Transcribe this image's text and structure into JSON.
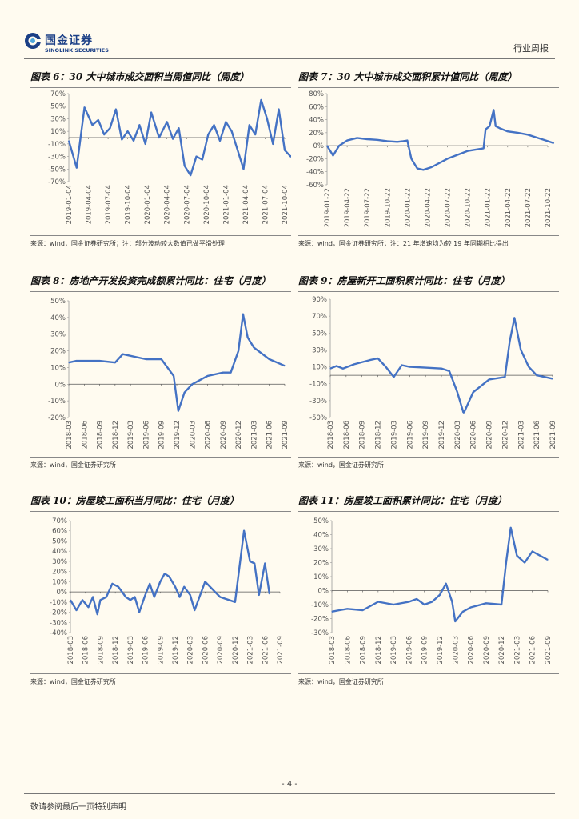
{
  "header": {
    "logo_cn": "国金证券",
    "logo_en": "SINOLINK SECURITIES",
    "report_type": "行业周报"
  },
  "colors": {
    "line": "#4472c4",
    "brand": "#1b3f86",
    "background": "#fffbf0"
  },
  "charts": [
    {
      "id": "fig6",
      "title": "图表 6：30 大中城市成交面积当周值同比（周度）",
      "source": "来源：wind，国金证券研究所；注：部分波动较大数值已做平滑处理",
      "chart_data": {
        "type": "line",
        "yticks": [
          "70%",
          "50%",
          "30%",
          "10%",
          "-10%",
          "-30%",
          "-50%",
          "-70%"
        ],
        "ylim": [
          -70,
          70
        ],
        "xticks": [
          "2019-01-04",
          "2019-04-04",
          "2019-07-04",
          "2019-10-04",
          "2020-01-04",
          "2020-04-04",
          "2020-07-04",
          "2020-10-04",
          "2021-01-04",
          "2021-04-04",
          "2021-07-04",
          "2021-10-04"
        ],
        "x": [
          0,
          0.4,
          0.8,
          1.2,
          1.5,
          1.8,
          2.1,
          2.4,
          2.7,
          3.0,
          3.3,
          3.6,
          3.9,
          4.2,
          4.6,
          5.0,
          5.3,
          5.6,
          5.9,
          6.2,
          6.5,
          6.8,
          7.1,
          7.4,
          7.7,
          8.0,
          8.3,
          8.6,
          8.9,
          9.2,
          9.5,
          9.8,
          10.1,
          10.4,
          10.7,
          11.0,
          11.3,
          11.6,
          11.9
        ],
        "values": [
          -5,
          -48,
          48,
          20,
          28,
          5,
          15,
          45,
          -3,
          10,
          -5,
          20,
          -10,
          40,
          0,
          25,
          -2,
          15,
          -45,
          -60,
          -30,
          -35,
          5,
          20,
          -5,
          25,
          10,
          -20,
          -50,
          20,
          5,
          60,
          30,
          -10,
          45,
          -20,
          -30,
          -25,
          -10
        ]
      }
    },
    {
      "id": "fig7",
      "title": "图表 7：30 大中城市成交面积累计值同比（周度）",
      "source": "来源：wind，国金证券研究所；注：21 年增速均为较 19 年同期相比得出",
      "chart_data": {
        "type": "line",
        "yticks": [
          "80%",
          "60%",
          "40%",
          "20%",
          "0%",
          "-20%",
          "-40%",
          "-60%"
        ],
        "ylim": [
          -60,
          80
        ],
        "xticks": [
          "2019-01-22",
          "2019-04-22",
          "2019-07-22",
          "2019-10-22",
          "2020-01-22",
          "2020-04-22",
          "2020-07-22",
          "2020-10-22",
          "2021-01-22",
          "2021-04-22",
          "2021-07-22",
          "2021-10-22"
        ],
        "x": [
          0,
          0.3,
          0.6,
          1.0,
          1.5,
          2.0,
          2.5,
          3.0,
          3.5,
          3.8,
          4.0,
          4.2,
          4.5,
          4.8,
          5.2,
          6.0,
          7.0,
          7.8,
          7.9,
          8.1,
          8.3,
          8.4,
          8.6,
          9.0,
          9.5,
          10.0,
          10.5,
          11.0,
          11.3
        ],
        "values": [
          0,
          -15,
          0,
          8,
          12,
          10,
          9,
          7,
          6,
          7,
          8,
          -20,
          -35,
          -37,
          -33,
          -20,
          -8,
          -4,
          25,
          30,
          55,
          30,
          27,
          22,
          20,
          17,
          12,
          7,
          4
        ]
      }
    },
    {
      "id": "fig8",
      "title": "图表 8：房地产开发投资完成额累计同比：住宅（月度）",
      "source": "来源：wind，国金证券研究所",
      "chart_data": {
        "type": "line",
        "yticks": [
          "50%",
          "40%",
          "30%",
          "20%",
          "10%",
          "0%",
          "-10%",
          "-20%"
        ],
        "ylim": [
          -20,
          50
        ],
        "xticks": [
          "2018-03",
          "2018-06",
          "2018-09",
          "2018-12",
          "2019-03",
          "2019-06",
          "2019-09",
          "2019-12",
          "2020-03",
          "2020-06",
          "2020-09",
          "2020-12",
          "2021-03",
          "2021-06",
          "2021-09"
        ],
        "x": [
          0,
          0.5,
          1,
          2,
          3,
          3.5,
          4,
          5,
          6,
          6.8,
          7.1,
          7.5,
          8,
          9,
          10,
          10.5,
          11,
          11.3,
          11.6,
          12,
          13,
          14
        ],
        "values": [
          13,
          14,
          14,
          14,
          13,
          18,
          17,
          15,
          15,
          5,
          -16,
          -5,
          0,
          5,
          7,
          7,
          20,
          42,
          28,
          22,
          15,
          11
        ]
      }
    },
    {
      "id": "fig9",
      "title": "图表 9：房屋新开工面积累计同比：住宅（月度）",
      "source": "来源：wind，国金证券研究所",
      "chart_data": {
        "type": "line",
        "yticks": [
          "90%",
          "70%",
          "50%",
          "30%",
          "10%",
          "-10%",
          "-30%",
          "-50%"
        ],
        "ylim": [
          -50,
          90
        ],
        "xticks": [
          "2018-03",
          "2018-06",
          "2018-09",
          "2018-12",
          "2019-03",
          "2019-06",
          "2019-09",
          "2019-12",
          "2020-03",
          "2020-06",
          "2020-09",
          "2020-12",
          "2021-03",
          "2021-06",
          "2021-09"
        ],
        "x": [
          0,
          0.4,
          0.8,
          1.5,
          2.5,
          3,
          3.5,
          4,
          4.5,
          5,
          6,
          7,
          7.5,
          8,
          8.4,
          9,
          10,
          11,
          11.3,
          11.6,
          12,
          12.5,
          13,
          14
        ],
        "values": [
          8,
          11,
          8,
          13,
          18,
          20,
          10,
          -2,
          12,
          10,
          9,
          8,
          5,
          -20,
          -45,
          -20,
          -5,
          -2,
          40,
          68,
          30,
          10,
          0,
          -4
        ]
      }
    },
    {
      "id": "fig10",
      "title": "图表 10：房屋竣工面积当月同比：住宅（月度）",
      "source": "来源：wind，国金证券研究所",
      "chart_data": {
        "type": "line",
        "yticks": [
          "70%",
          "60%",
          "50%",
          "40%",
          "30%",
          "20%",
          "10%",
          "0%",
          "-10%",
          "-20%",
          "-30%",
          "-40%"
        ],
        "ylim": [
          -40,
          70
        ],
        "xticks": [
          "2018-03",
          "2018-06",
          "2018-09",
          "2018-12",
          "2019-03",
          "2019-06",
          "2019-09",
          "2019-12",
          "2020-03",
          "2020-06",
          "2020-09",
          "2020-12",
          "2021-03",
          "2021-06",
          "2021-09"
        ],
        "x": [
          0,
          0.4,
          0.8,
          1.2,
          1.5,
          1.8,
          2.0,
          2.4,
          2.8,
          3.2,
          3.7,
          4.0,
          4.3,
          4.6,
          5.0,
          5.3,
          5.6,
          6.0,
          6.3,
          6.6,
          7.0,
          7.3,
          7.6,
          8.0,
          8.3,
          9.0,
          10.0,
          11.0,
          11.6,
          12.0,
          12.3,
          12.6,
          13.0,
          13.3
        ],
        "values": [
          -8,
          -18,
          -8,
          -15,
          -5,
          -22,
          -8,
          -5,
          8,
          5,
          -5,
          -8,
          -5,
          -20,
          -3,
          8,
          -5,
          10,
          18,
          15,
          5,
          -5,
          5,
          -3,
          -18,
          10,
          -5,
          -10,
          60,
          30,
          28,
          -3,
          28,
          -2
        ]
      }
    },
    {
      "id": "fig11",
      "title": "图表 11：房屋竣工面积累计同比：住宅（月度）",
      "source": "来源：wind，国金证券研究所",
      "chart_data": {
        "type": "line",
        "yticks": [
          "50%",
          "40%",
          "30%",
          "20%",
          "10%",
          "0%",
          "-10%",
          "-20%",
          "-30%"
        ],
        "ylim": [
          -30,
          50
        ],
        "xticks": [
          "2018-03",
          "2018-06",
          "2018-09",
          "2018-12",
          "2019-03",
          "2019-06",
          "2019-09",
          "2019-12",
          "2020-03",
          "2020-06",
          "2020-09",
          "2020-12",
          "2021-03",
          "2021-06",
          "2021-09"
        ],
        "x": [
          0,
          0.5,
          1,
          2,
          3,
          4,
          5,
          5.5,
          6,
          6.5,
          7,
          7.4,
          7.8,
          8,
          8.5,
          9,
          10,
          11,
          11.3,
          11.6,
          12,
          12.5,
          13,
          13.5,
          14
        ],
        "values": [
          -15,
          -14,
          -13,
          -14,
          -8,
          -10,
          -8,
          -6,
          -10,
          -8,
          -3,
          5,
          -8,
          -22,
          -15,
          -12,
          -9,
          -10,
          20,
          45,
          25,
          20,
          28,
          25,
          22
        ]
      }
    }
  ],
  "footer": {
    "page_number": "- 4 -",
    "disclaimer": "敬请参阅最后一页特别声明"
  }
}
